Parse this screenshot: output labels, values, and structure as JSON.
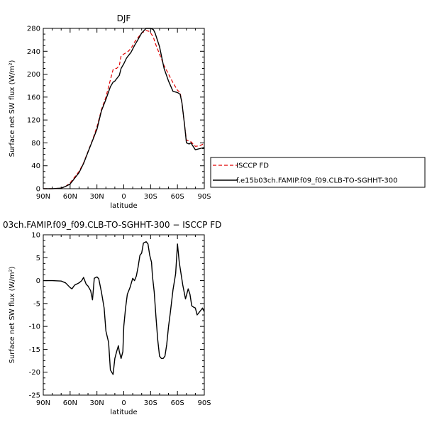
{
  "chart_data": [
    {
      "type": "line",
      "title": "DJF",
      "xlabel": "latitude",
      "ylabel": "Surface net SW flux (W/m²)",
      "x_ticks": [
        "90N",
        "60N",
        "30N",
        "0",
        "30S",
        "60S",
        "90S"
      ],
      "x_tick_values": [
        90,
        60,
        30,
        0,
        -30,
        -60,
        -90
      ],
      "xlim": [
        90,
        -90
      ],
      "ylim": [
        0,
        280
      ],
      "y_ticks": [
        0,
        40,
        80,
        120,
        160,
        200,
        240,
        280
      ],
      "legend": "outside-right",
      "series": [
        {
          "name": "ISCCP FD",
          "color": "#e00000",
          "dashed": true,
          "x": [
            90,
            80,
            70,
            65,
            60,
            55,
            50,
            45,
            40,
            35,
            30,
            25,
            20,
            15,
            12,
            10,
            8,
            5,
            3,
            0,
            -3,
            -5,
            -8,
            -10,
            -12,
            -15,
            -20,
            -25,
            -28,
            -30,
            -33,
            -35,
            -40,
            -45,
            -50,
            -55,
            -60,
            -63,
            -65,
            -68,
            -70,
            -73,
            -75,
            -80,
            -85,
            -90
          ],
          "y": [
            0,
            0,
            1,
            4,
            10,
            20,
            30,
            45,
            65,
            85,
            108,
            138,
            160,
            190,
            208,
            210,
            210,
            215,
            232,
            235,
            238,
            240,
            245,
            250,
            256,
            262,
            272,
            276,
            275,
            272,
            265,
            255,
            235,
            215,
            200,
            185,
            172,
            168,
            150,
            110,
            85,
            83,
            82,
            74,
            75,
            79
          ]
        },
        {
          "name": "f.e15b03ch.FAMIP.f09_f09.CLB-TO-SGHHT-300",
          "color": "#000000",
          "dashed": false,
          "x": [
            90,
            80,
            70,
            65,
            60,
            55,
            50,
            45,
            40,
            35,
            30,
            25,
            20,
            15,
            12,
            10,
            8,
            5,
            3,
            0,
            -3,
            -5,
            -8,
            -10,
            -12,
            -15,
            -20,
            -25,
            -28,
            -30,
            -33,
            -35,
            -40,
            -45,
            -50,
            -55,
            -60,
            -63,
            -65,
            -68,
            -70,
            -73,
            -75,
            -80,
            -85,
            -90
          ],
          "y": [
            0,
            0,
            1,
            4,
            8,
            18,
            28,
            44,
            64,
            84,
            104,
            136,
            156,
            178,
            186,
            188,
            192,
            198,
            210,
            218,
            228,
            232,
            238,
            244,
            250,
            258,
            272,
            280,
            280,
            280,
            278,
            272,
            248,
            210,
            188,
            170,
            168,
            165,
            150,
            110,
            80,
            78,
            80,
            68,
            70,
            72
          ]
        }
      ]
    },
    {
      "type": "line",
      "title": "03ch.FAMIP.f09_f09.CLB-TO-SGHHT-300 − ISCCP FD",
      "xlabel": "latitude",
      "ylabel": "Surface net SW flux (W/m²)",
      "x_ticks": [
        "90N",
        "60N",
        "30N",
        "0",
        "30S",
        "60S",
        "90S"
      ],
      "x_tick_values": [
        90,
        60,
        30,
        0,
        -30,
        -60,
        -90
      ],
      "xlim": [
        90,
        -90
      ],
      "ylim": [
        -25,
        10
      ],
      "y_ticks": [
        -25,
        -20,
        -15,
        -10,
        -5,
        0,
        5,
        10
      ],
      "series": [
        {
          "color": "#000000",
          "x": [
            90,
            80,
            70,
            65,
            60,
            58,
            55,
            50,
            47,
            45,
            42,
            40,
            37,
            35,
            33,
            30,
            28,
            25,
            22,
            20,
            17,
            15,
            12,
            10,
            8,
            6,
            5,
            3,
            1,
            0,
            -2,
            -4,
            -7,
            -10,
            -12,
            -14,
            -16,
            -18,
            -20,
            -22,
            -25,
            -27,
            -29,
            -31,
            -32,
            -34,
            -36,
            -38,
            -40,
            -42,
            -44,
            -46,
            -48,
            -50,
            -52,
            -55,
            -58,
            -60,
            -62,
            -64,
            -66,
            -69,
            -72,
            -74,
            -76,
            -78,
            -80,
            -82,
            -84,
            -86,
            -88,
            -90
          ],
          "y": [
            0,
            0,
            -0.1,
            -0.5,
            -1.5,
            -1.8,
            -1,
            -0.5,
            0,
            0.7,
            -0.8,
            -1.2,
            -2.2,
            -4.2,
            0.5,
            0.8,
            0.4,
            -2.5,
            -6,
            -11,
            -13.5,
            -19.5,
            -20.5,
            -17,
            -15.5,
            -14.2,
            -15.5,
            -17,
            -15.5,
            -10,
            -6,
            -3,
            -1.5,
            0.5,
            0,
            1,
            3,
            5.5,
            6,
            8.2,
            8.5,
            8,
            5.5,
            4,
            1,
            -2.5,
            -8,
            -13,
            -16.5,
            -17,
            -17,
            -16.5,
            -14,
            -10,
            -7,
            -2,
            1.5,
            8,
            4,
            1.5,
            -1,
            -4,
            -1.8,
            -3,
            -5.5,
            -5.8,
            -6,
            -7.5,
            -7,
            -6.5,
            -6,
            -6.8
          ]
        }
      ]
    }
  ]
}
